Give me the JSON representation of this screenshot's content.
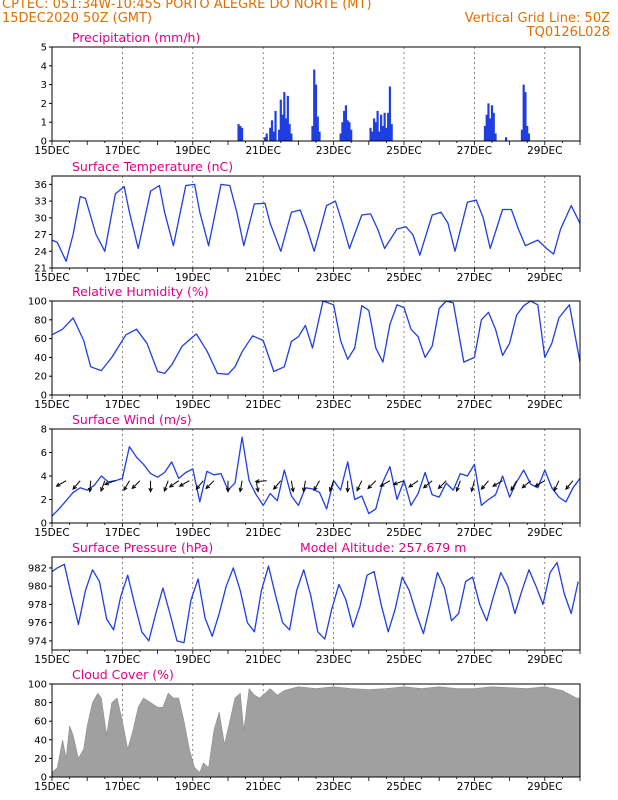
{
  "header": {
    "line1": "CPTEC:  051:34W-10:45S  PORTO ALEGRE DO NORTE (MT)",
    "line2_left": "15DEC2020 50Z (GMT)",
    "line2_right": "Vertical Grid Line: 50Z",
    "line3_right": "TQ0126L028"
  },
  "colors": {
    "header": "#e07000",
    "panel_title": "#e0008a",
    "series": "#1f3fe0",
    "cloud": "#a0a0a0",
    "arrow": "#000000"
  },
  "chart_data": [
    {
      "type": "bar",
      "title": "Precipitation (mm/h)",
      "ylim": [
        0,
        5
      ],
      "yticks": [
        0,
        1,
        2,
        3,
        4,
        5
      ],
      "xlim": [
        0,
        15
      ],
      "xtick_labels": [
        "15DEC",
        "17DEC",
        "19DEC",
        "21DEC",
        "23DEC",
        "25DEC",
        "27DEC",
        "29DEC"
      ],
      "x": [
        5.3,
        5.35,
        5.4,
        6.05,
        6.1,
        6.2,
        6.25,
        6.3,
        6.35,
        6.45,
        6.5,
        6.55,
        6.6,
        6.65,
        6.7,
        6.75,
        6.8,
        7.4,
        7.45,
        7.5,
        7.55,
        7.6,
        8.2,
        8.25,
        8.3,
        8.35,
        8.4,
        8.45,
        8.5,
        9.05,
        9.1,
        9.15,
        9.2,
        9.25,
        9.3,
        9.35,
        9.4,
        9.45,
        9.5,
        9.55,
        9.6,
        9.65,
        12.3,
        12.35,
        12.4,
        12.45,
        12.5,
        12.55,
        12.6,
        12.9,
        13.35,
        13.4,
        13.45,
        13.5,
        13.55
      ],
      "values": [
        0.9,
        0.8,
        0.7,
        0.2,
        0.4,
        0.7,
        1.1,
        0.5,
        1.6,
        0.6,
        2.2,
        1.4,
        2.6,
        1.2,
        2.4,
        0.9,
        0.4,
        0.8,
        3.8,
        3.0,
        1.3,
        0.5,
        0.4,
        1.0,
        1.6,
        1.9,
        1.1,
        1.0,
        0.6,
        0.7,
        0.5,
        1.2,
        1.0,
        1.6,
        0.5,
        1.4,
        0.8,
        1.5,
        0.7,
        1.5,
        2.9,
        0.9,
        0.8,
        1.4,
        2.0,
        1.2,
        1.9,
        1.5,
        0.4,
        0.2,
        0.6,
        3.0,
        2.6,
        0.8,
        0.4
      ]
    },
    {
      "type": "line",
      "title": "Surface Temperature (nC)",
      "ylim": [
        21,
        37.5
      ],
      "yticks": [
        21,
        24,
        27,
        30,
        33,
        36
      ],
      "xlim": [
        0,
        15
      ],
      "xtick_labels": [
        "15DEC",
        "17DEC",
        "19DEC",
        "21DEC",
        "23DEC",
        "25DEC",
        "27DEC",
        "29DEC"
      ],
      "x": [
        0.0,
        0.15,
        0.4,
        0.6,
        0.8,
        0.95,
        1.25,
        1.5,
        1.8,
        2.05,
        2.2,
        2.45,
        2.8,
        3.05,
        3.2,
        3.45,
        3.8,
        4.05,
        4.2,
        4.45,
        4.8,
        5.05,
        5.25,
        5.45,
        5.75,
        6.05,
        6.2,
        6.5,
        6.8,
        7.05,
        7.25,
        7.45,
        7.8,
        8.05,
        8.25,
        8.45,
        8.8,
        9.05,
        9.25,
        9.45,
        9.8,
        10.05,
        10.25,
        10.45,
        10.8,
        11.05,
        11.25,
        11.45,
        11.8,
        12.05,
        12.25,
        12.45,
        12.8,
        13.05,
        13.25,
        13.45,
        13.8,
        14.05,
        14.25,
        14.45,
        14.75,
        15.0
      ],
      "values": [
        26.0,
        25.6,
        22.2,
        27.0,
        33.8,
        33.5,
        27.0,
        24.0,
        34.3,
        35.6,
        31.0,
        24.5,
        34.8,
        35.8,
        31.0,
        25.0,
        35.8,
        36.0,
        31.0,
        25.0,
        36.0,
        35.8,
        31.0,
        25.0,
        32.5,
        32.6,
        29.0,
        24.0,
        31.0,
        31.4,
        28.0,
        24.0,
        32.2,
        33.0,
        29.0,
        24.5,
        30.5,
        30.7,
        28.0,
        24.5,
        28.0,
        28.4,
        27.0,
        23.3,
        30.5,
        31.0,
        29.0,
        24.0,
        32.8,
        33.2,
        30.0,
        24.5,
        31.5,
        31.5,
        28.0,
        25.0,
        26.0,
        24.5,
        23.5,
        28.0,
        32.2,
        29.0
      ]
    },
    {
      "type": "line",
      "title": "Relative Humidity (%)",
      "ylim": [
        0,
        100
      ],
      "yticks": [
        0,
        20,
        40,
        60,
        80,
        100
      ],
      "xlim": [
        0,
        15
      ],
      "xtick_labels": [
        "15DEC",
        "17DEC",
        "19DEC",
        "21DEC",
        "23DEC",
        "25DEC",
        "27DEC",
        "29DEC"
      ],
      "x": [
        0.0,
        0.3,
        0.6,
        0.9,
        1.1,
        1.4,
        1.7,
        2.1,
        2.4,
        2.7,
        3.0,
        3.2,
        3.4,
        3.7,
        4.1,
        4.4,
        4.7,
        5.0,
        5.2,
        5.4,
        5.7,
        6.0,
        6.3,
        6.6,
        6.8,
        7.0,
        7.2,
        7.4,
        7.7,
        8.0,
        8.2,
        8.4,
        8.6,
        8.8,
        9.0,
        9.2,
        9.4,
        9.6,
        9.8,
        10.0,
        10.2,
        10.4,
        10.6,
        10.8,
        11.0,
        11.2,
        11.4,
        11.7,
        12.0,
        12.2,
        12.4,
        12.6,
        12.8,
        13.0,
        13.2,
        13.4,
        13.6,
        13.8,
        14.0,
        14.2,
        14.4,
        14.7,
        15.0
      ],
      "values": [
        64,
        70,
        82,
        58,
        30,
        26,
        40,
        64,
        70,
        55,
        25,
        23,
        32,
        52,
        65,
        47,
        23,
        22,
        30,
        46,
        63,
        58,
        25,
        30,
        57,
        62,
        74,
        50,
        100,
        96,
        58,
        38,
        50,
        95,
        90,
        50,
        35,
        75,
        96,
        93,
        70,
        62,
        40,
        52,
        92,
        100,
        98,
        35,
        40,
        80,
        88,
        70,
        42,
        55,
        85,
        95,
        100,
        96,
        40,
        55,
        82,
        96,
        35
      ]
    },
    {
      "type": "line",
      "title": "Surface Wind (m/s)",
      "ylim": [
        0,
        8
      ],
      "yticks": [
        0,
        2,
        4,
        6,
        8
      ],
      "xlim": [
        0,
        15
      ],
      "xtick_labels": [
        "15DEC",
        "17DEC",
        "19DEC",
        "21DEC",
        "23DEC",
        "25DEC",
        "27DEC",
        "29DEC"
      ],
      "x": [
        0.0,
        0.2,
        0.4,
        0.6,
        0.8,
        1.0,
        1.2,
        1.4,
        1.6,
        1.8,
        2.0,
        2.2,
        2.4,
        2.6,
        2.8,
        3.0,
        3.2,
        3.4,
        3.6,
        3.8,
        4.0,
        4.2,
        4.4,
        4.6,
        4.8,
        5.0,
        5.2,
        5.4,
        5.6,
        5.8,
        6.0,
        6.2,
        6.4,
        6.6,
        6.8,
        7.0,
        7.2,
        7.4,
        7.6,
        7.8,
        8.0,
        8.2,
        8.4,
        8.6,
        8.8,
        9.0,
        9.2,
        9.4,
        9.6,
        9.8,
        10.0,
        10.2,
        10.4,
        10.6,
        10.8,
        11.0,
        11.2,
        11.4,
        11.6,
        11.8,
        12.0,
        12.2,
        12.4,
        12.6,
        12.8,
        13.0,
        13.2,
        13.4,
        13.6,
        13.8,
        14.0,
        14.2,
        14.4,
        14.6,
        14.8,
        15.0
      ],
      "values": [
        0.6,
        1.2,
        1.9,
        2.6,
        3.0,
        2.8,
        3.2,
        4.0,
        3.5,
        3.6,
        3.8,
        6.5,
        5.6,
        5.0,
        4.2,
        3.9,
        4.3,
        5.2,
        3.8,
        4.3,
        4.6,
        1.8,
        4.4,
        4.1,
        4.2,
        2.8,
        3.4,
        7.3,
        3.6,
        2.4,
        1.5,
        2.5,
        1.9,
        4.5,
        2.3,
        1.5,
        3.0,
        2.9,
        2.6,
        1.2,
        3.6,
        2.8,
        5.2,
        2.0,
        2.3,
        0.8,
        1.2,
        3.5,
        4.8,
        2.0,
        3.6,
        1.5,
        2.5,
        4.3,
        2.4,
        2.2,
        3.4,
        2.8,
        4.2,
        4.0,
        5.0,
        1.5,
        2.0,
        2.4,
        4.0,
        2.2,
        3.5,
        4.5,
        3.3,
        3.0,
        4.5,
        3.0,
        2.2,
        1.8,
        3.0,
        3.8
      ],
      "wind_arrow_days": [
        0.4,
        0.8,
        1.1,
        1.5,
        1.8,
        2.2,
        2.5,
        2.8,
        3.3,
        3.6,
        3.9,
        4.3,
        4.6,
        5.0,
        5.4,
        5.8,
        6.1,
        6.5,
        6.8,
        7.2,
        7.6,
        8.0,
        8.4,
        8.8,
        9.2,
        9.6,
        10.0,
        10.4,
        10.8,
        11.2,
        11.6,
        12.0,
        12.4,
        12.8,
        13.2,
        13.6,
        14.0,
        14.4,
        14.8
      ],
      "wind_arrow_dir_deg": [
        210,
        230,
        265,
        250,
        200,
        240,
        225,
        270,
        250,
        215,
        210,
        230,
        225,
        270,
        260,
        280,
        185,
        230,
        280,
        260,
        240,
        250,
        270,
        245,
        225,
        210,
        200,
        215,
        220,
        225,
        250,
        255,
        230,
        210,
        240,
        220,
        210,
        245,
        230
      ]
    },
    {
      "type": "line",
      "title": "Surface Pressure (hPa)",
      "annotation": "Model Altitude: 257.679  m",
      "ylim": [
        973,
        983.2
      ],
      "yticks": [
        974,
        976,
        978,
        980,
        982
      ],
      "xlim": [
        0,
        15
      ],
      "xtick_labels": [
        "15DEC",
        "17DEC",
        "19DEC",
        "21DEC",
        "23DEC",
        "25DEC",
        "27DEC",
        "29DEC"
      ],
      "x": [
        0.0,
        0.15,
        0.35,
        0.55,
        0.75,
        0.95,
        1.15,
        1.35,
        1.55,
        1.75,
        1.95,
        2.15,
        2.35,
        2.55,
        2.75,
        2.95,
        3.15,
        3.35,
        3.55,
        3.75,
        3.95,
        4.15,
        4.35,
        4.55,
        4.75,
        4.95,
        5.15,
        5.35,
        5.55,
        5.75,
        5.95,
        6.15,
        6.35,
        6.55,
        6.75,
        6.95,
        7.15,
        7.35,
        7.55,
        7.75,
        7.95,
        8.15,
        8.35,
        8.55,
        8.75,
        8.95,
        9.15,
        9.35,
        9.55,
        9.75,
        9.95,
        10.15,
        10.35,
        10.55,
        10.75,
        10.95,
        11.15,
        11.35,
        11.55,
        11.75,
        11.95,
        12.15,
        12.35,
        12.55,
        12.75,
        12.95,
        13.15,
        13.35,
        13.55,
        13.75,
        13.95,
        14.15,
        14.35,
        14.55,
        14.75,
        14.95
      ],
      "values": [
        981.6,
        982.0,
        982.4,
        979.0,
        975.8,
        979.5,
        981.8,
        980.5,
        976.4,
        975.2,
        978.8,
        981.2,
        978.0,
        975.0,
        974.0,
        977.0,
        979.8,
        977.0,
        974.0,
        973.8,
        978.5,
        980.8,
        976.5,
        974.5,
        977.0,
        980.0,
        982.0,
        979.5,
        976.0,
        975.0,
        979.5,
        982.2,
        979.0,
        976.0,
        975.2,
        979.5,
        981.8,
        979.0,
        975.0,
        974.2,
        977.5,
        980.2,
        978.5,
        975.5,
        977.8,
        981.2,
        981.6,
        978.0,
        975.0,
        977.5,
        981.0,
        979.5,
        977.0,
        974.8,
        978.0,
        981.5,
        979.8,
        976.2,
        977.0,
        980.5,
        981.0,
        978.0,
        976.2,
        979.0,
        981.5,
        980.0,
        977.0,
        979.5,
        981.8,
        980.0,
        978.0,
        981.5,
        982.6,
        979.2,
        977.0,
        980.5
      ]
    },
    {
      "type": "area",
      "title": "Cloud Cover (%)",
      "ylim": [
        0,
        100
      ],
      "yticks": [
        0,
        20,
        40,
        60,
        80,
        100
      ],
      "xlim": [
        0,
        15
      ],
      "xtick_labels": [
        "15DEC",
        "17DEC",
        "19DEC",
        "21DEC",
        "23DEC",
        "25DEC",
        "27DEC",
        "29DEC"
      ],
      "x": [
        0.0,
        0.15,
        0.3,
        0.4,
        0.5,
        0.6,
        0.75,
        0.9,
        1.0,
        1.15,
        1.3,
        1.4,
        1.55,
        1.7,
        1.85,
        2.0,
        2.15,
        2.3,
        2.45,
        2.6,
        2.8,
        3.0,
        3.15,
        3.3,
        3.45,
        3.6,
        3.75,
        3.9,
        4.05,
        4.2,
        4.3,
        4.45,
        4.6,
        4.75,
        4.9,
        5.05,
        5.2,
        5.35,
        5.45,
        5.6,
        5.75,
        5.9,
        6.05,
        6.2,
        6.4,
        6.6,
        6.8,
        7.0,
        7.5,
        8.0,
        8.5,
        9.0,
        9.5,
        10.0,
        10.5,
        11.0,
        11.5,
        12.0,
        12.5,
        13.0,
        13.5,
        14.0,
        14.5,
        14.9,
        15.0
      ],
      "values": [
        5,
        10,
        40,
        20,
        55,
        45,
        20,
        30,
        55,
        80,
        90,
        85,
        45,
        80,
        85,
        60,
        30,
        50,
        75,
        85,
        80,
        75,
        75,
        90,
        85,
        85,
        60,
        30,
        10,
        5,
        15,
        10,
        50,
        70,
        35,
        60,
        85,
        90,
        50,
        95,
        88,
        85,
        90,
        95,
        88,
        93,
        95,
        97,
        95,
        97,
        95,
        94,
        95,
        97,
        95,
        97,
        95,
        95,
        97,
        96,
        95,
        97,
        93,
        85,
        85
      ]
    }
  ]
}
